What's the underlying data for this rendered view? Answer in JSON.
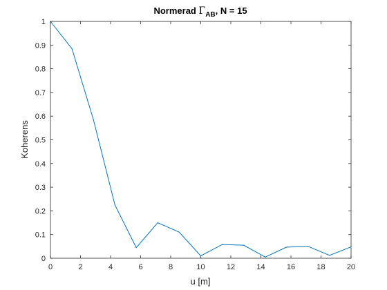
{
  "chart_data": {
    "type": "line",
    "title_main": "Normerad ",
    "title_gamma": "Γ",
    "title_sub": "AB",
    "title_tail": ", N = 15",
    "xlabel": "u [m]",
    "ylabel": "Koherens",
    "xlim": [
      0,
      20
    ],
    "ylim": [
      0,
      1
    ],
    "xticks": [
      0,
      2,
      4,
      6,
      8,
      10,
      12,
      14,
      16,
      18,
      20
    ],
    "yticks": [
      0,
      0.1,
      0.2,
      0.3,
      0.4,
      0.5,
      0.6,
      0.7,
      0.8,
      0.9,
      1
    ],
    "grid": false,
    "line_color": "#0072BD",
    "series": [
      {
        "x": [
          0,
          1.43,
          2.86,
          4.29,
          5.71,
          7.14,
          8.57,
          10.0,
          11.43,
          12.86,
          14.29,
          15.71,
          17.14,
          18.57,
          20.0
        ],
        "y": [
          1.0,
          0.885,
          0.585,
          0.225,
          0.045,
          0.15,
          0.11,
          0.01,
          0.058,
          0.055,
          0.005,
          0.047,
          0.05,
          0.012,
          0.048
        ]
      }
    ]
  }
}
